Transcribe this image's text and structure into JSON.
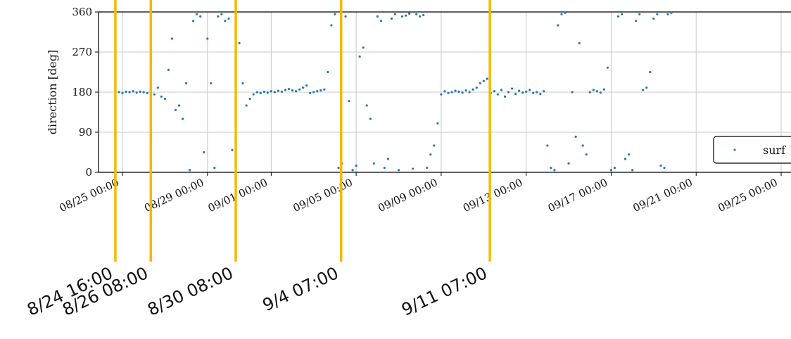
{
  "chart_data": {
    "type": "scatter",
    "ylabel": "direction [deg]",
    "ylim": [
      0,
      360
    ],
    "yticks": [
      0,
      90,
      180,
      270,
      360
    ],
    "xlim": [
      "08/24 12:00",
      "09/25 00:00"
    ],
    "xticks": [
      "08/25 00:00",
      "08/29 00:00",
      "09/01 00:00",
      "09/05 00:00",
      "09/09 00:00",
      "09/13 00:00",
      "09/17 00:00",
      "09/21 00:00",
      "09/25 00:00"
    ],
    "grid": true,
    "legend": {
      "position": "right",
      "entries": [
        "surf"
      ]
    },
    "series": [
      {
        "name": "surf",
        "color": "#1f77b4",
        "points": [
          [
            "08/24 16:00",
            182
          ],
          [
            "08/24 20:00",
            180
          ],
          [
            "08/25 00:00",
            178
          ],
          [
            "08/25 04:00",
            181
          ],
          [
            "08/25 08:00",
            180
          ],
          [
            "08/25 12:00",
            182
          ],
          [
            "08/25 16:00",
            179
          ],
          [
            "08/25 20:00",
            181
          ],
          [
            "08/26 00:00",
            180
          ],
          [
            "08/26 04:00",
            178
          ],
          [
            "08/26 08:00",
            176
          ],
          [
            "08/26 12:00",
            175
          ],
          [
            "08/26 16:00",
            190
          ],
          [
            "08/26 20:00",
            170
          ],
          [
            "08/27 00:00",
            165
          ],
          [
            "08/27 04:00",
            230
          ],
          [
            "08/27 08:00",
            300
          ],
          [
            "08/27 12:00",
            140
          ],
          [
            "08/27 16:00",
            150
          ],
          [
            "08/27 20:00",
            120
          ],
          [
            "08/28 00:00",
            200
          ],
          [
            "08/28 04:00",
            5
          ],
          [
            "08/28 08:00",
            340
          ],
          [
            "08/28 12:00",
            355
          ],
          [
            "08/28 16:00",
            350
          ],
          [
            "08/28 20:00",
            45
          ],
          [
            "08/29 00:00",
            300
          ],
          [
            "08/29 04:00",
            200
          ],
          [
            "08/29 08:00",
            10
          ],
          [
            "08/29 12:00",
            350
          ],
          [
            "08/29 16:00",
            355
          ],
          [
            "08/29 20:00",
            340
          ],
          [
            "08/30 00:00",
            345
          ],
          [
            "08/30 04:00",
            50
          ],
          [
            "08/30 08:00",
            30
          ],
          [
            "08/30 12:00",
            290
          ],
          [
            "08/30 16:00",
            200
          ],
          [
            "08/30 20:00",
            150
          ],
          [
            "08/31 00:00",
            165
          ],
          [
            "08/31 04:00",
            175
          ],
          [
            "08/31 08:00",
            180
          ],
          [
            "08/31 12:00",
            178
          ],
          [
            "08/31 16:00",
            181
          ],
          [
            "08/31 20:00",
            179
          ],
          [
            "09/01 00:00",
            182
          ],
          [
            "09/01 04:00",
            180
          ],
          [
            "09/01 08:00",
            183
          ],
          [
            "09/01 12:00",
            181
          ],
          [
            "09/01 16:00",
            185
          ],
          [
            "09/01 20:00",
            187
          ],
          [
            "09/02 00:00",
            184
          ],
          [
            "09/02 04:00",
            182
          ],
          [
            "09/02 08:00",
            186
          ],
          [
            "09/02 12:00",
            190
          ],
          [
            "09/02 16:00",
            195
          ],
          [
            "09/02 20:00",
            178
          ],
          [
            "09/03 00:00",
            180
          ],
          [
            "09/03 04:00",
            182
          ],
          [
            "09/03 08:00",
            184
          ],
          [
            "09/03 12:00",
            186
          ],
          [
            "09/03 16:00",
            225
          ],
          [
            "09/03 20:00",
            330
          ],
          [
            "09/04 00:00",
            355
          ],
          [
            "09/04 04:00",
            10
          ],
          [
            "09/04 08:00",
            20
          ],
          [
            "09/04 12:00",
            350
          ],
          [
            "09/04 16:00",
            160
          ],
          [
            "09/04 20:00",
            5
          ],
          [
            "09/05 00:00",
            15
          ],
          [
            "09/05 04:00",
            260
          ],
          [
            "09/05 08:00",
            280
          ],
          [
            "09/05 12:00",
            150
          ],
          [
            "09/05 16:00",
            120
          ],
          [
            "09/05 20:00",
            20
          ],
          [
            "09/06 00:00",
            350
          ],
          [
            "09/06 04:00",
            340
          ],
          [
            "09/06 08:00",
            10
          ],
          [
            "09/06 12:00",
            30
          ],
          [
            "09/06 16:00",
            345
          ],
          [
            "09/06 20:00",
            355
          ],
          [
            "09/07 00:00",
            5
          ],
          [
            "09/07 04:00",
            350
          ],
          [
            "09/07 08:00",
            352
          ],
          [
            "09/07 12:00",
            356
          ],
          [
            "09/07 16:00",
            8
          ],
          [
            "09/07 20:00",
            355
          ],
          [
            "09/08 00:00",
            350
          ],
          [
            "09/08 04:00",
            353
          ],
          [
            "09/08 08:00",
            10
          ],
          [
            "09/08 12:00",
            40
          ],
          [
            "09/08 16:00",
            60
          ],
          [
            "09/08 20:00",
            110
          ],
          [
            "09/09 00:00",
            175
          ],
          [
            "09/09 04:00",
            182
          ],
          [
            "09/09 08:00",
            178
          ],
          [
            "09/09 12:00",
            180
          ],
          [
            "09/09 16:00",
            183
          ],
          [
            "09/09 20:00",
            181
          ],
          [
            "09/10 00:00",
            179
          ],
          [
            "09/10 04:00",
            184
          ],
          [
            "09/10 08:00",
            180
          ],
          [
            "09/10 12:00",
            186
          ],
          [
            "09/10 16:00",
            190
          ],
          [
            "09/10 20:00",
            200
          ],
          [
            "09/11 00:00",
            205
          ],
          [
            "09/11 04:00",
            210
          ],
          [
            "09/11 08:00",
            178
          ],
          [
            "09/11 12:00",
            182
          ],
          [
            "09/11 16:00",
            175
          ],
          [
            "09/11 20:00",
            185
          ],
          [
            "09/12 00:00",
            170
          ],
          [
            "09/12 04:00",
            180
          ],
          [
            "09/12 08:00",
            188
          ],
          [
            "09/12 12:00",
            176
          ],
          [
            "09/12 16:00",
            183
          ],
          [
            "09/12 20:00",
            179
          ],
          [
            "09/13 00:00",
            181
          ],
          [
            "09/13 04:00",
            185
          ],
          [
            "09/13 08:00",
            178
          ],
          [
            "09/13 12:00",
            180
          ],
          [
            "09/13 16:00",
            176
          ],
          [
            "09/13 20:00",
            182
          ],
          [
            "09/14 00:00",
            60
          ],
          [
            "09/14 04:00",
            10
          ],
          [
            "09/14 08:00",
            5
          ],
          [
            "09/14 12:00",
            330
          ],
          [
            "09/14 16:00",
            355
          ],
          [
            "09/14 20:00",
            358
          ],
          [
            "09/15 00:00",
            20
          ],
          [
            "09/15 04:00",
            180
          ],
          [
            "09/15 08:00",
            80
          ],
          [
            "09/15 12:00",
            290
          ],
          [
            "09/15 16:00",
            60
          ],
          [
            "09/15 20:00",
            40
          ],
          [
            "09/16 00:00",
            180
          ],
          [
            "09/16 04:00",
            185
          ],
          [
            "09/16 08:00",
            182
          ],
          [
            "09/16 12:00",
            179
          ],
          [
            "09/16 16:00",
            186
          ],
          [
            "09/16 20:00",
            235
          ],
          [
            "09/17 00:00",
            5
          ],
          [
            "09/17 04:00",
            10
          ],
          [
            "09/17 08:00",
            350
          ],
          [
            "09/17 12:00",
            355
          ],
          [
            "09/17 16:00",
            30
          ],
          [
            "09/17 20:00",
            40
          ],
          [
            "09/18 00:00",
            5
          ],
          [
            "09/18 04:00",
            340
          ],
          [
            "09/18 08:00",
            355
          ],
          [
            "09/18 12:00",
            185
          ],
          [
            "09/18 16:00",
            190
          ],
          [
            "09/18 20:00",
            225
          ],
          [
            "09/19 00:00",
            345
          ],
          [
            "09/19 04:00",
            355
          ],
          [
            "09/19 08:00",
            15
          ],
          [
            "09/19 12:00",
            10
          ],
          [
            "09/19 16:00",
            355
          ],
          [
            "09/19 20:00",
            358
          ]
        ]
      }
    ],
    "annotations": [
      {
        "date": "08/24 16:00",
        "label": "8/24 16:00"
      },
      {
        "date": "08/26 08:00",
        "label": "8/26 08:00"
      },
      {
        "date": "08/30 08:00",
        "label": "8/30 08:00"
      },
      {
        "date": "09/04 07:00",
        "label": "9/4 07:00"
      },
      {
        "date": "09/11 07:00",
        "label": "9/11 07:00"
      }
    ],
    "annotation_color": "#f5b800"
  }
}
